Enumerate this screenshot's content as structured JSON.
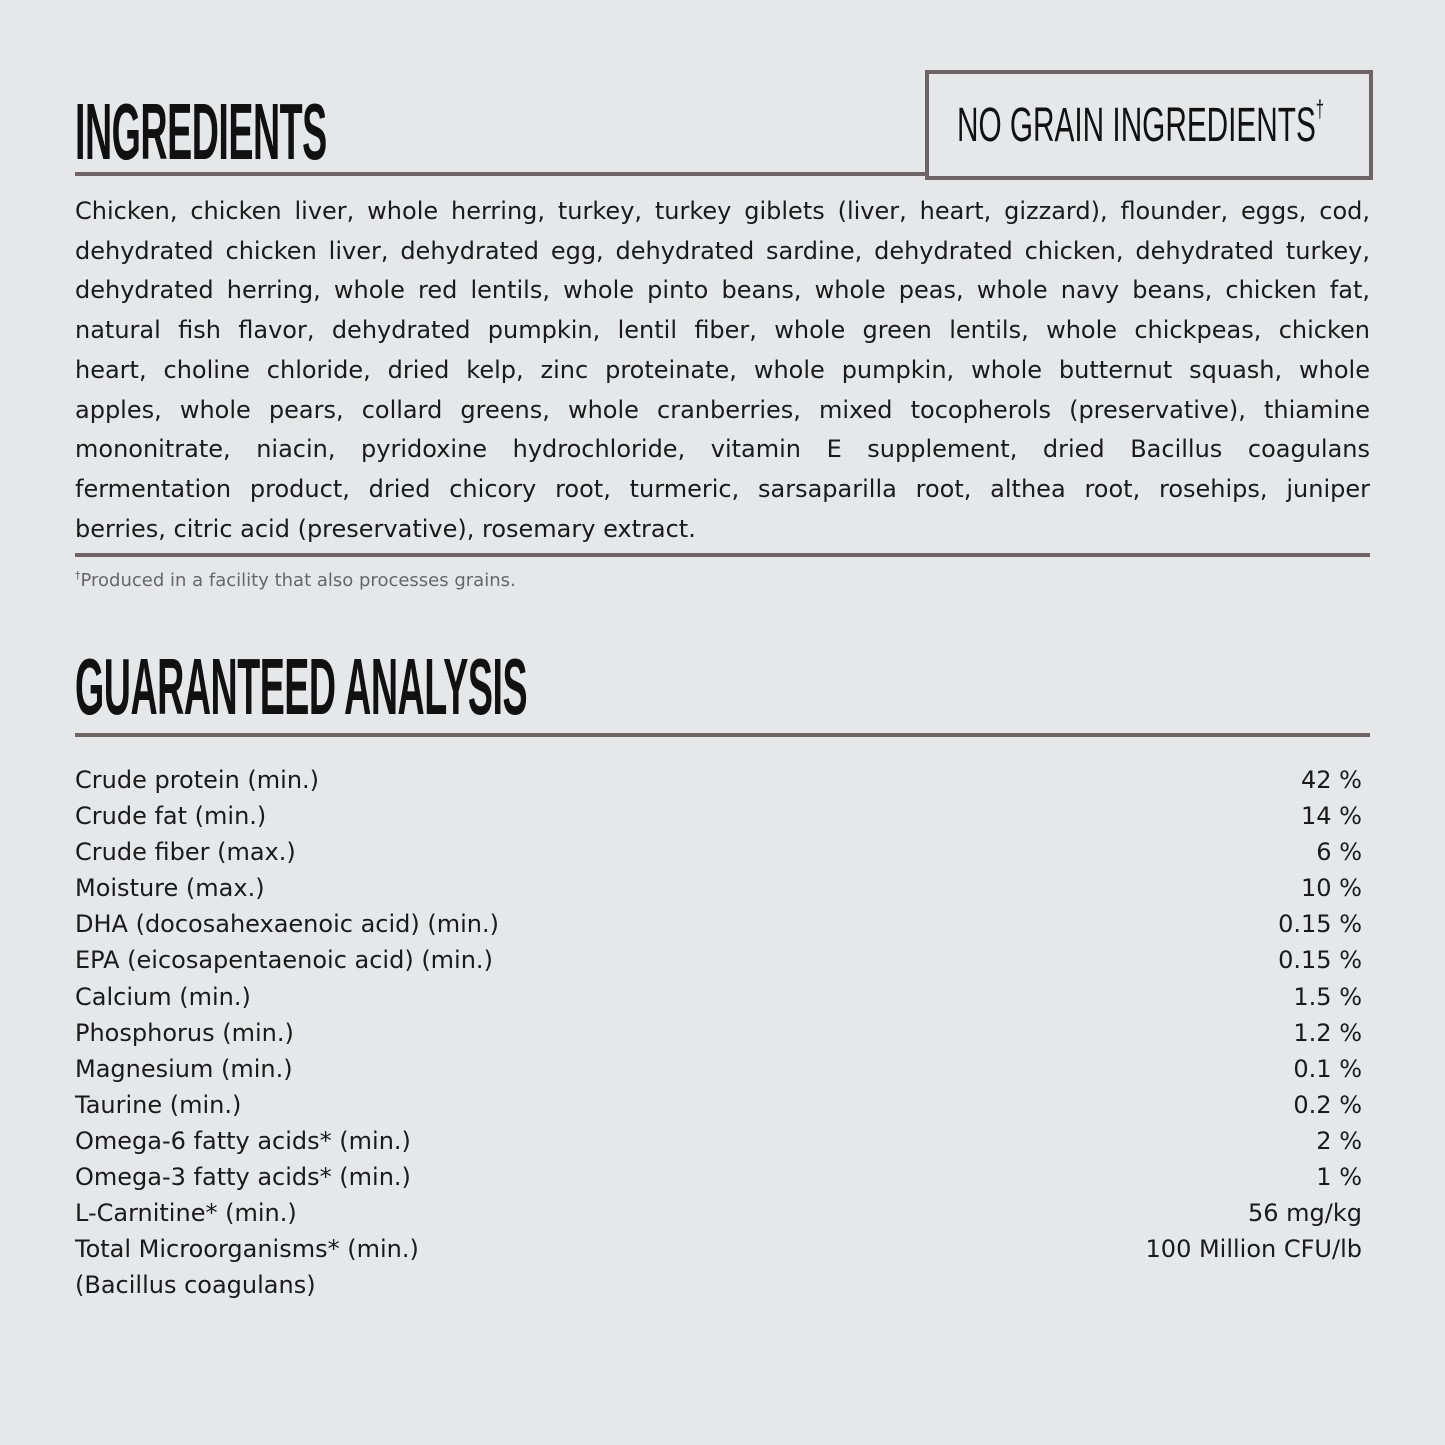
{
  "ingredients": {
    "title": "INGREDIENTS",
    "badge": "NO GRAIN INGREDIENTS",
    "badge_mark": "†",
    "lines": [
      "Chicken, chicken liver, whole herring, turkey, turkey giblets (liver, heart, gizzard), flounder, eggs, cod,",
      "dehydrated chicken liver, dehydrated egg, dehydrated sardine, dehydrated chicken, dehydrated turkey,",
      "dehydrated herring, whole red lentils, whole pinto beans, whole peas, whole navy beans, chicken fat,",
      "natural fish flavor, dehydrated pumpkin, lentil fiber, whole green lentils, whole chickpeas, chicken",
      "heart, choline chloride, dried kelp, zinc proteinate, whole pumpkin, whole butternut squash, whole",
      "apples, whole pears, collard greens, whole cranberries, mixed tocopherols (preservative), thiamine",
      "mononitrate, niacin, pyridoxine hydrochloride, vitamin E supplement, dried Bacillus coagulans",
      "fermentation product, dried chicory root, turmeric, sarsaparilla root, althea root, rosehips, juniper",
      "berries, citric acid (preservative), rosemary extract."
    ],
    "footnote_mark": "†",
    "footnote": "Produced in a facility that also processes grains."
  },
  "analysis": {
    "title": "GUARANTEED ANALYSIS",
    "rows": [
      {
        "label": "Crude protein (min.)",
        "value": "42 %"
      },
      {
        "label": "Crude fat (min.)",
        "value": "14 %"
      },
      {
        "label": "Crude fiber (max.)",
        "value": "6 %"
      },
      {
        "label": "Moisture (max.)",
        "value": "10 %"
      },
      {
        "label": "DHA (docosahexaenoic acid) (min.)",
        "value": "0.15 %"
      },
      {
        "label": "EPA (eicosapentaenoic acid) (min.)",
        "value": "0.15 %"
      },
      {
        "label": "Calcium (min.)",
        "value": "1.5 %"
      },
      {
        "label": "Phosphorus (min.)",
        "value": "1.2 %"
      },
      {
        "label": "Magnesium (min.)",
        "value": "0.1 %"
      },
      {
        "label": "Taurine (min.)",
        "value": "0.2 %"
      },
      {
        "label": "Omega-6 fatty acids* (min.)",
        "value": "2 %"
      },
      {
        "label": "Omega-3 fatty acids* (min.)",
        "value": "1 %"
      },
      {
        "label": "L-Carnitine* (min.)",
        "value": "56 mg/kg"
      },
      {
        "label": "Total Microorganisms* (min.)",
        "value": "100 Million CFU/lb"
      },
      {
        "label": "(Bacillus coagulans)",
        "value": ""
      }
    ]
  },
  "colors": {
    "background": "#e6e7e9",
    "rule": "#6e6466",
    "text": "#1a1a1a"
  }
}
